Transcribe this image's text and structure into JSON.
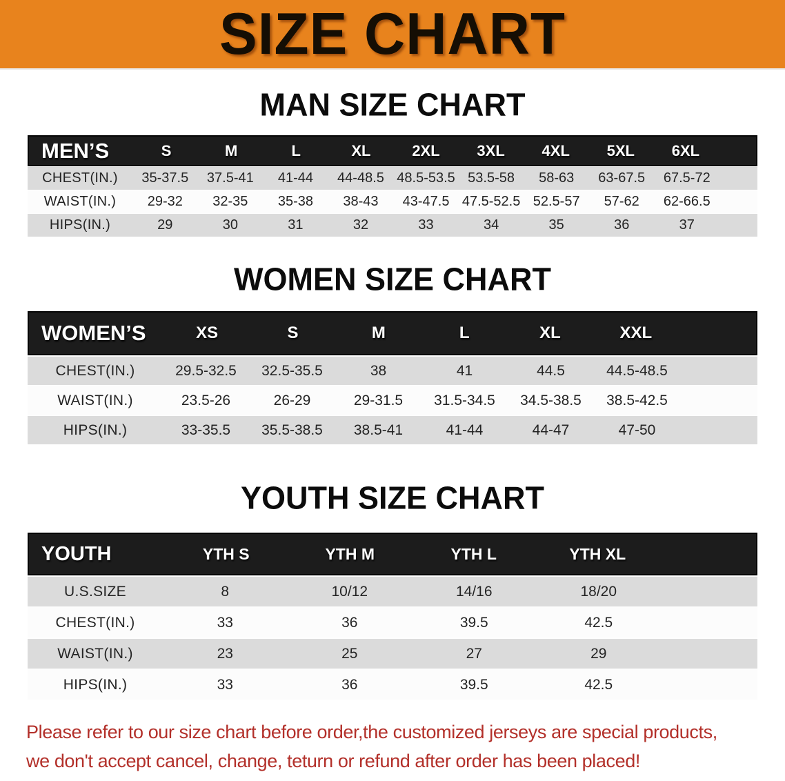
{
  "banner": {
    "title": "SIZE CHART",
    "bg_color": "#E8831D"
  },
  "sections": [
    {
      "heading": "MAN SIZE CHART",
      "table": {
        "corner_label": "MEN’S",
        "sizes": [
          "S",
          "M",
          "L",
          "XL",
          "2XL",
          "3XL",
          "4XL",
          "5XL",
          "6XL"
        ],
        "rows": [
          {
            "label": "CHEST(IN.)",
            "values": [
              "35-37.5",
              "37.5-41",
              "41-44",
              "44-48.5",
              "48.5-53.5",
              "53.5-58",
              "58-63",
              "63-67.5",
              "67.5-72"
            ]
          },
          {
            "label": "WAIST(IN.)",
            "values": [
              "29-32",
              "32-35",
              "35-38",
              "38-43",
              "43-47.5",
              "47.5-52.5",
              "52.5-57",
              "57-62",
              "62-66.5"
            ]
          },
          {
            "label": "HIPS(IN.)",
            "values": [
              "29",
              "30",
              "31",
              "32",
              "33",
              "34",
              "35",
              "36",
              "37"
            ]
          }
        ]
      }
    },
    {
      "heading": "WOMEN SIZE CHART",
      "table": {
        "corner_label": "WOMEN’S",
        "sizes": [
          "XS",
          "S",
          "M",
          "L",
          "XL",
          "XXL"
        ],
        "rows": [
          {
            "label": "CHEST(IN.)",
            "values": [
              "29.5-32.5",
              "32.5-35.5",
              "38",
              "41",
              "44.5",
              "44.5-48.5"
            ]
          },
          {
            "label": "WAIST(IN.)",
            "values": [
              "23.5-26",
              "26-29",
              "29-31.5",
              "31.5-34.5",
              "34.5-38.5",
              "38.5-42.5"
            ]
          },
          {
            "label": "HIPS(IN.)",
            "values": [
              "33-35.5",
              "35.5-38.5",
              "38.5-41",
              "41-44",
              "44-47",
              "47-50"
            ]
          }
        ]
      }
    },
    {
      "heading": "YOUTH SIZE CHART",
      "table": {
        "corner_label": "YOUTH",
        "sizes": [
          "YTH S",
          "YTH M",
          "YTH L",
          "YTH XL"
        ],
        "rows": [
          {
            "label": "U.S.SIZE",
            "values": [
              "8",
              "10/12",
              "14/16",
              "18/20"
            ]
          },
          {
            "label": "CHEST(IN.)",
            "values": [
              "33",
              "36",
              "39.5",
              "42.5"
            ]
          },
          {
            "label": "WAIST(IN.)",
            "values": [
              "23",
              "25",
              "27",
              "29"
            ]
          },
          {
            "label": "HIPS(IN.)",
            "values": [
              "33",
              "36",
              "39.5",
              "42.5"
            ]
          }
        ]
      }
    }
  ],
  "footnote": {
    "line1": "Please refer to our size chart before order,the customized jerseys are special products,",
    "line2": "we don't accept cancel, change, teturn or refund after order has been placed!",
    "text_color": "#B3302A"
  },
  "colors": {
    "banner_bg": "#E8831D",
    "table_header_bg": "#1C1C1C",
    "row_shaded": "#DBDBDB",
    "row_plain": "#FCFCFC"
  }
}
